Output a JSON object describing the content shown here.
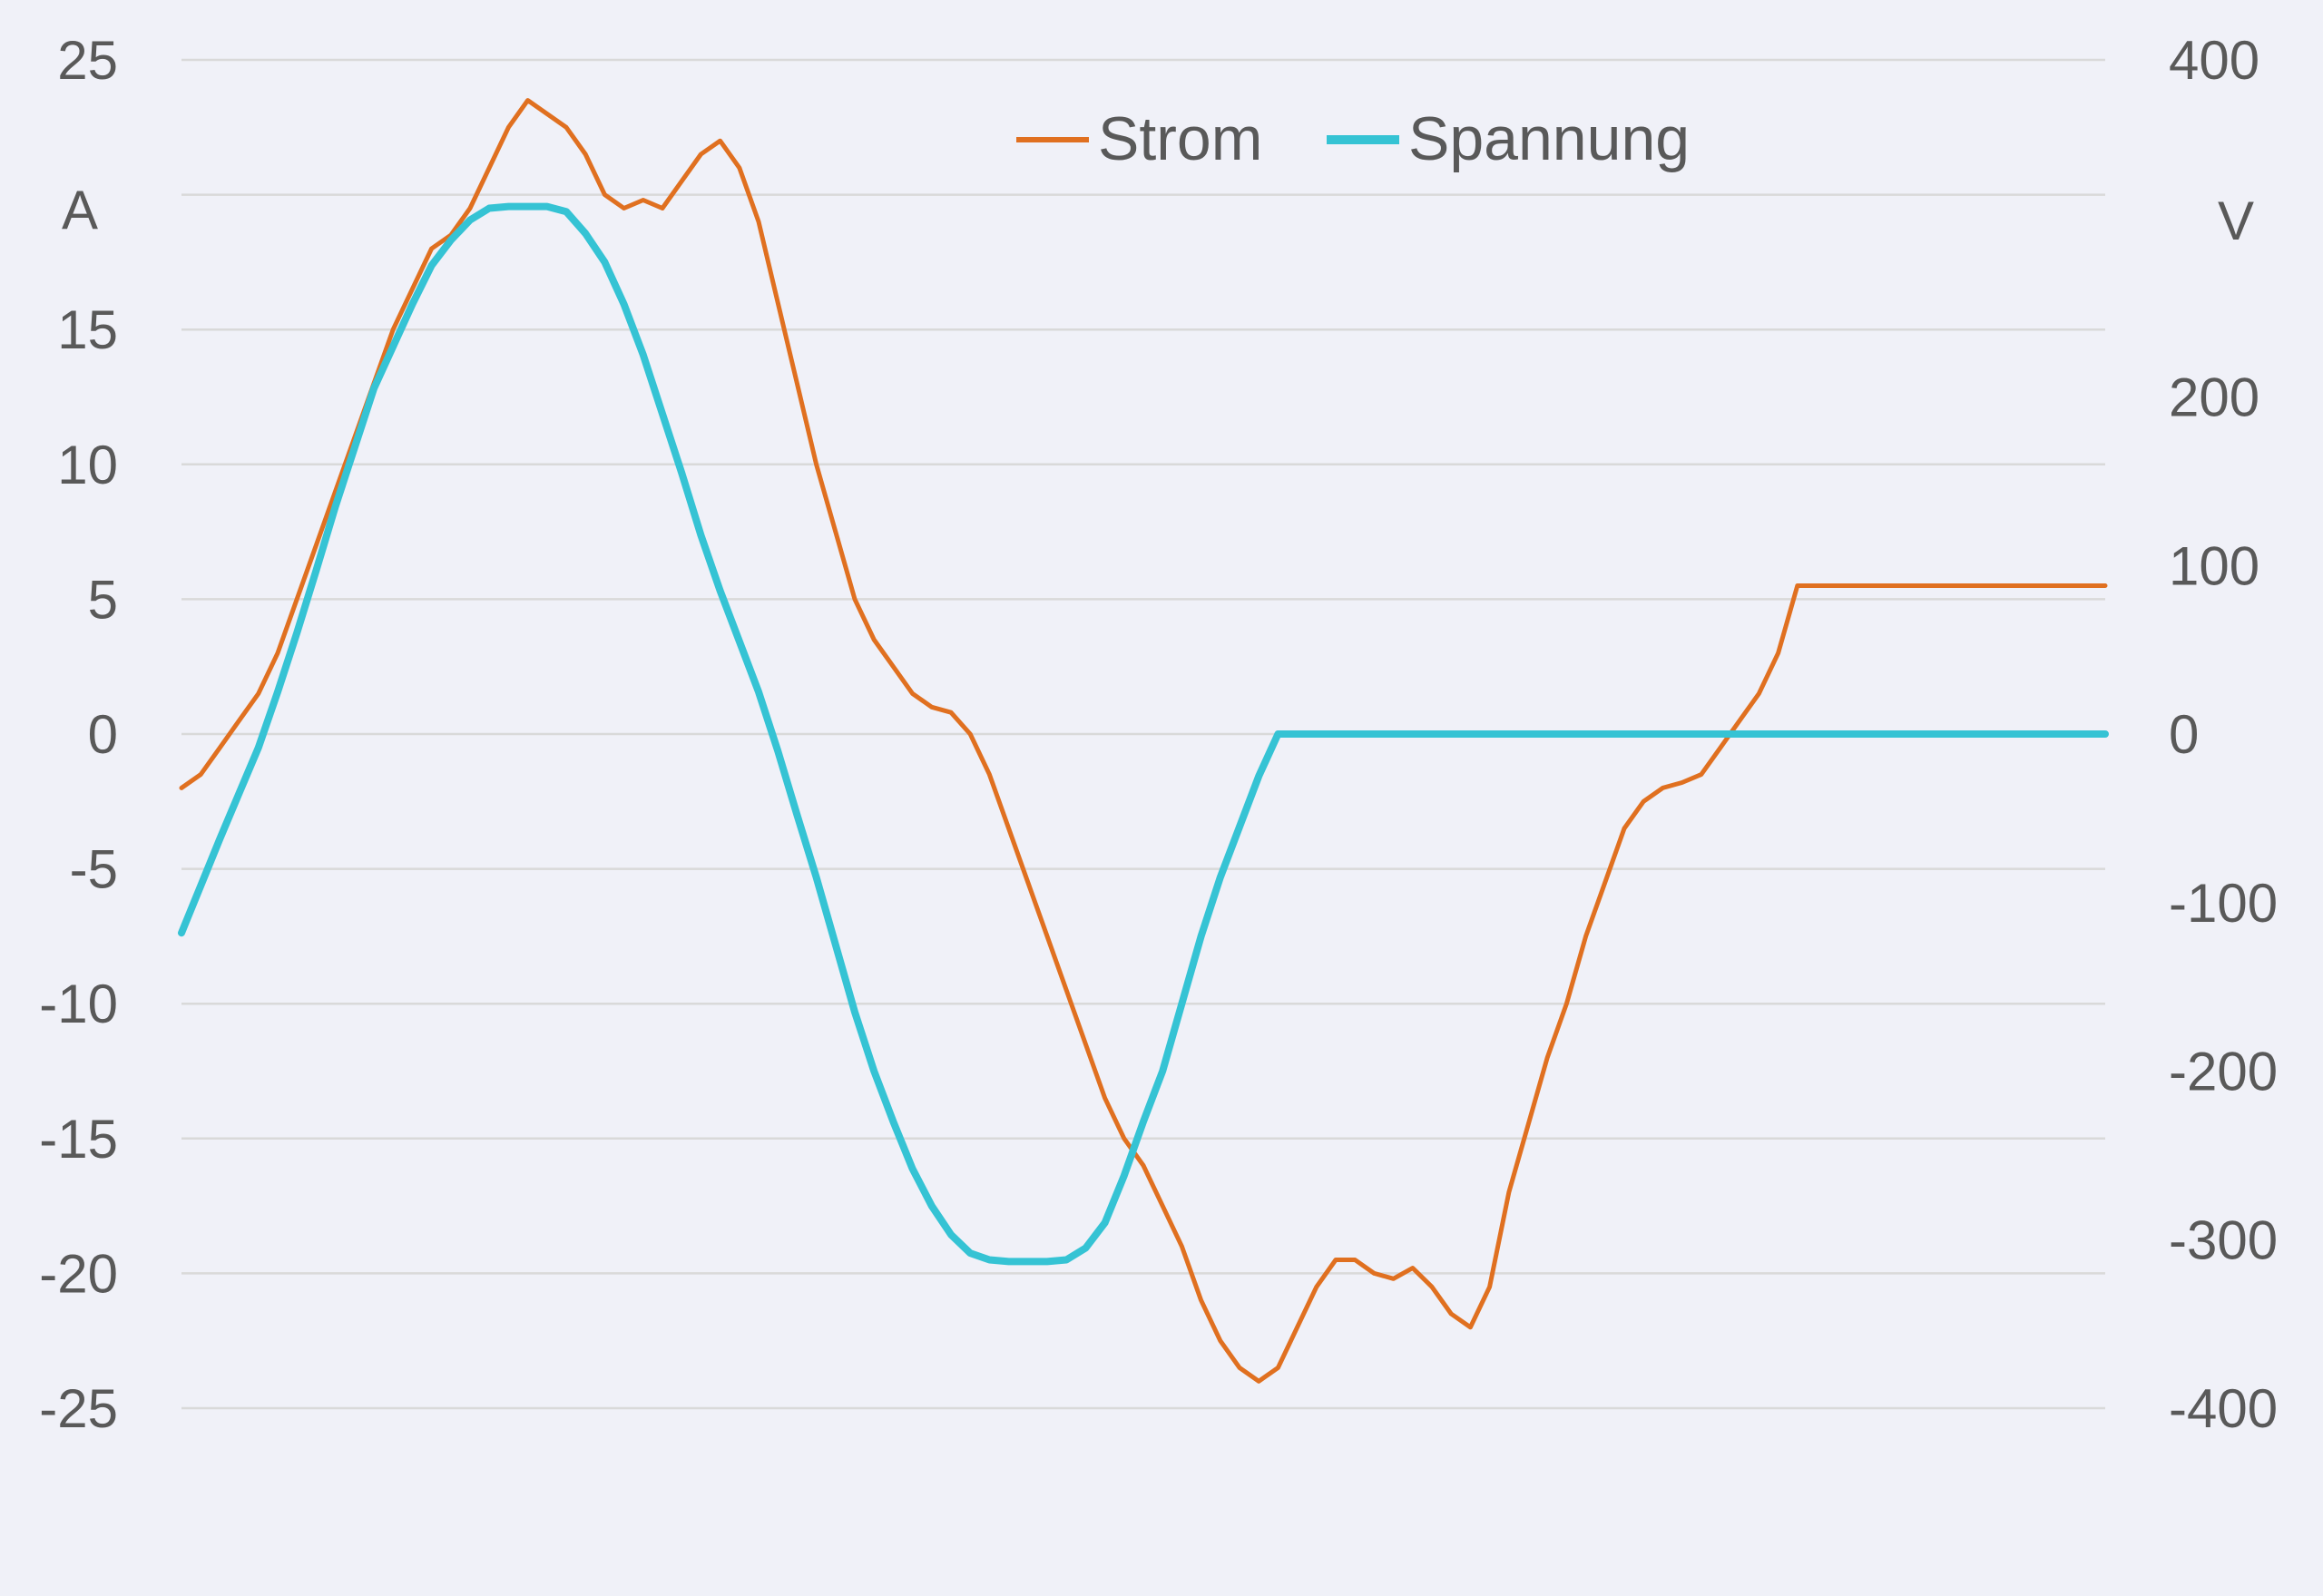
{
  "chart_data": {
    "type": "line",
    "title": "",
    "left_axis": {
      "label": "A",
      "ticks": [
        "25",
        "15",
        "10",
        "5",
        "0",
        "-5",
        "-10",
        "-15",
        "-20",
        "-25"
      ],
      "range": [
        -25,
        25
      ]
    },
    "right_axis": {
      "label": "V",
      "ticks": [
        "400",
        "200",
        "100",
        "0",
        "-100",
        "-200",
        "-300",
        "-400"
      ],
      "range": [
        -400,
        400
      ]
    },
    "grid": true,
    "legend": {
      "placement": "top-center",
      "items": [
        "Strom",
        "Spannung"
      ]
    },
    "series": [
      {
        "name": "Strom",
        "axis": "left",
        "color": "#e07020",
        "x": [
          0,
          0.01,
          0.02,
          0.03,
          0.04,
          0.05,
          0.06,
          0.07,
          0.08,
          0.09,
          0.1,
          0.11,
          0.12,
          0.13,
          0.14,
          0.15,
          0.16,
          0.17,
          0.18,
          0.19,
          0.2,
          0.21,
          0.22,
          0.23,
          0.24,
          0.25,
          0.26,
          0.27,
          0.28,
          0.29,
          0.3,
          0.31,
          0.32,
          0.33,
          0.34,
          0.35,
          0.36,
          0.37,
          0.38,
          0.39,
          0.4,
          0.41,
          0.42,
          0.43,
          0.44,
          0.45,
          0.46,
          0.47,
          0.48,
          0.49,
          0.5,
          0.51,
          0.52,
          0.53,
          0.54,
          0.55,
          0.56,
          0.57,
          0.58,
          0.59,
          0.6,
          0.61,
          0.62,
          0.63,
          0.64,
          0.65,
          0.66,
          0.67,
          0.68,
          0.69,
          0.7,
          0.71,
          0.72,
          0.73,
          0.74,
          0.75,
          0.76,
          0.77,
          0.78,
          0.79,
          0.8,
          0.81,
          0.82,
          0.83,
          0.84,
          0.85,
          0.86,
          0.87,
          0.88,
          0.89,
          0.9,
          0.91,
          0.92,
          0.93,
          0.94,
          0.95,
          0.96,
          0.97,
          0.98,
          0.99,
          1
        ],
        "values": [
          -2,
          -1.5,
          -0.5,
          0.5,
          1.5,
          3,
          5,
          7,
          9,
          11,
          13,
          15,
          16.5,
          18,
          18.5,
          19.5,
          21,
          22.5,
          23.5,
          23,
          22.5,
          21.5,
          20,
          19.5,
          19.8,
          19.5,
          20.5,
          21.5,
          22,
          21,
          19,
          16,
          13,
          10,
          7.5,
          5,
          3.5,
          2.5,
          1.5,
          1,
          0.8,
          0,
          -1.5,
          -3.5,
          -5.5,
          -7.5,
          -9.5,
          -11.5,
          -13.5,
          -15,
          -16,
          -17.5,
          -19,
          -21,
          -22.5,
          -23.5,
          -24,
          -23.5,
          -22,
          -20.5,
          -19.5,
          -19.5,
          -20,
          -20.2,
          -19.8,
          -20.5,
          -21.5,
          -22,
          -20.5,
          -17,
          -14.5,
          -12,
          -10,
          -7.5,
          -5.5,
          -3.5,
          -2.5,
          -2,
          -1.8,
          -1.5,
          -0.5,
          0.5,
          1.5,
          3,
          5.5,
          5.5,
          5.5,
          5.5,
          5.5,
          5.5,
          5.5,
          5.5,
          5.5,
          5.5,
          5.5,
          5.5,
          5.5,
          5.5,
          5.5,
          5.5,
          5.5
        ]
      },
      {
        "name": "Spannung",
        "axis": "right",
        "color": "#35c3d4",
        "x": [
          0,
          0.01,
          0.02,
          0.03,
          0.04,
          0.05,
          0.06,
          0.07,
          0.08,
          0.09,
          0.1,
          0.11,
          0.12,
          0.13,
          0.14,
          0.15,
          0.16,
          0.17,
          0.18,
          0.19,
          0.2,
          0.21,
          0.22,
          0.23,
          0.24,
          0.25,
          0.26,
          0.27,
          0.28,
          0.29,
          0.3,
          0.31,
          0.32,
          0.33,
          0.34,
          0.35,
          0.36,
          0.37,
          0.38,
          0.39,
          0.4,
          0.41,
          0.42,
          0.43,
          0.44,
          0.45,
          0.46,
          0.47,
          0.48,
          0.49,
          0.5,
          0.51,
          0.52,
          0.53,
          0.54,
          0.55,
          0.56,
          0.57,
          0.58,
          0.59,
          0.6,
          0.61,
          0.62,
          0.63,
          0.64,
          0.65,
          0.66,
          0.67,
          0.68,
          0.69,
          0.7,
          0.71,
          0.72,
          0.73,
          0.74,
          0.75,
          0.76,
          0.77,
          0.78,
          0.79,
          0.8,
          0.81,
          0.82,
          0.83,
          0.84,
          0.85,
          0.86,
          0.87,
          0.88,
          0.89,
          0.9,
          0.91,
          0.92,
          0.93,
          0.94,
          0.95,
          0.96,
          0.97,
          0.98,
          0.99,
          1
        ],
        "values": [
          -118,
          -90,
          -62,
          -35,
          -8,
          25,
          60,
          97,
          135,
          170,
          205,
          230,
          255,
          278,
          293,
          305,
          312,
          313,
          313,
          313,
          310,
          297,
          280,
          255,
          225,
          190,
          155,
          118,
          85,
          55,
          25,
          -10,
          -48,
          -85,
          -125,
          -165,
          -200,
          -230,
          -258,
          -280,
          -297,
          -308,
          -312,
          -313,
          -313,
          -313,
          -312,
          -305,
          -290,
          -262,
          -230,
          -200,
          -160,
          -120,
          -85,
          -55,
          -25,
          0,
          0,
          0,
          0,
          0,
          0,
          0,
          0,
          0,
          0,
          0,
          0,
          0,
          0,
          0,
          0,
          0,
          0,
          0,
          0,
          0,
          0,
          0,
          0,
          0,
          0,
          0,
          0,
          0,
          0,
          0,
          0,
          0,
          0,
          0,
          0,
          0,
          0,
          0,
          0,
          0,
          0,
          0,
          0
        ]
      }
    ]
  }
}
